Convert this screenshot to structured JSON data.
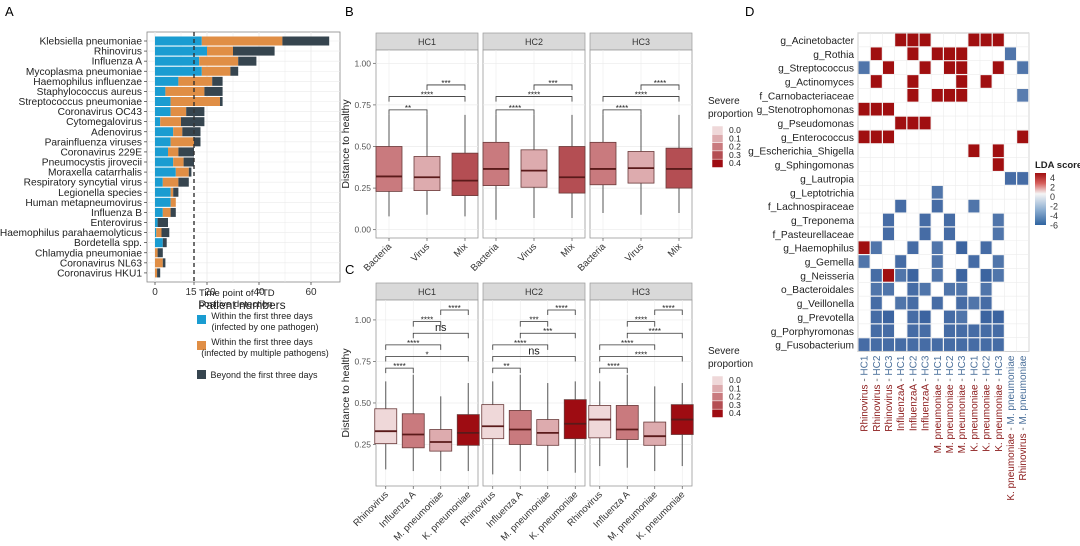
{
  "panel_labels": {
    "a": "A",
    "b": "B",
    "c": "C",
    "d": "D"
  },
  "colors": {
    "single": "#1a9cd1",
    "multiple": "#e08e45",
    "beyond": "#36454f",
    "severe": [
      "#efd8d9",
      "#ddabae",
      "#c97a7e",
      "#b44e53",
      "#9e0c12"
    ],
    "lda_pos": "#a00f10",
    "lda_neg": "#4a76a8",
    "strip": "#d9d9d9",
    "grid": "#ebebeb",
    "axis_label_d_red": "#8b1a1a",
    "axis_label_d_blue": "#4a6f9a"
  },
  "chart_data": [
    {
      "id": "A",
      "type": "bar",
      "stacked": true,
      "orientation": "horizontal",
      "xlabel": "Patient numbers",
      "xticks": [
        0,
        15,
        20,
        40,
        60
      ],
      "xlim": [
        -2,
        70
      ],
      "vline": 15,
      "grid": true,
      "categories": [
        "Klebsiella pneumoniae",
        "Rhinovirus",
        "Influenza A",
        "Mycoplasma pneumoniae",
        "Haemophilus influenzae",
        "Staphylococcus aureus",
        "Streptococcus pneumoniae",
        "Coronavirus OC43",
        "Cytomegalovirus",
        "Adenovirus",
        "Parainfluenza viruses",
        "Coronavirus 229E",
        "Pneumocystis jirovecii",
        "Moraxella catarrhalis",
        "Respiratory syncytial virus",
        "Legionella species",
        "Human metapneumovirus",
        "Influenza B",
        "Enterovirus",
        "Haemophilus parahaemolyticus",
        "Bordetella spp.",
        "Chlamydia pneumoniae",
        "Coronavirus NL63",
        "Coronavirus HKU1"
      ],
      "series": [
        {
          "name": "Within the first three days (infected by one pathogen)",
          "color_key": "single",
          "values": [
            18,
            20,
            17,
            18,
            9,
            4,
            6,
            6,
            2,
            7,
            6,
            5,
            7,
            8,
            3,
            6,
            6,
            3,
            1,
            0.5,
            3,
            0,
            0,
            0
          ]
        },
        {
          "name": "Within the first three days (infected by multiple pathogens)",
          "color_key": "multiple",
          "values": [
            31,
            10,
            15,
            11,
            13,
            15,
            19,
            6,
            8,
            3.5,
            9,
            4,
            4,
            5,
            6,
            1,
            2,
            3,
            0,
            2,
            0,
            1,
            3,
            0.8
          ]
        },
        {
          "name": "Beyond the first three days",
          "color_key": "beyond",
          "values": [
            18,
            16,
            7,
            3,
            4,
            7,
            1,
            7,
            9,
            7,
            2.5,
            6,
            4,
            1,
            4,
            2,
            0,
            2,
            4,
            3,
            1.5,
            2,
            1,
            1.2
          ]
        }
      ],
      "legend": {
        "title": "Time point of FTD\npositive detection",
        "placement": "bottom-right",
        "entries": [
          [
            "Within the first three days",
            "(infected by one pathogen)"
          ],
          [
            "Within the first three days",
            "(infected by multiple pathogens)"
          ],
          [
            "Beyond the first three days"
          ]
        ]
      }
    },
    {
      "id": "B",
      "type": "box",
      "ylabel": "Distance to healthy",
      "ylim": [
        -0.04,
        1.08
      ],
      "yticks": [
        "0.00",
        "0.25",
        "0.50",
        "0.75",
        "1.00"
      ],
      "facets": [
        "HC1",
        "HC2",
        "HC3"
      ],
      "categories": [
        "Bacteria",
        "Virus",
        "Mix"
      ],
      "boxes": [
        [
          {
            "lo": 0.08,
            "q1": 0.23,
            "med": 0.32,
            "q3": 0.5,
            "hi": 0.69,
            "sev": 0.2
          },
          {
            "lo": 0.09,
            "q1": 0.235,
            "med": 0.315,
            "q3": 0.44,
            "hi": 0.69,
            "sev": 0.1
          },
          {
            "lo": 0.08,
            "q1": 0.205,
            "med": 0.295,
            "q3": 0.46,
            "hi": 0.69,
            "sev": 0.3
          }
        ],
        [
          {
            "lo": 0.06,
            "q1": 0.265,
            "med": 0.365,
            "q3": 0.525,
            "hi": 0.69,
            "sev": 0.2
          },
          {
            "lo": 0.07,
            "q1": 0.255,
            "med": 0.355,
            "q3": 0.48,
            "hi": 0.69,
            "sev": 0.1
          },
          {
            "lo": 0.07,
            "q1": 0.22,
            "med": 0.315,
            "q3": 0.5,
            "hi": 0.69,
            "sev": 0.3
          }
        ],
        [
          {
            "lo": 0.1,
            "q1": 0.27,
            "med": 0.365,
            "q3": 0.525,
            "hi": 0.69,
            "sev": 0.2
          },
          {
            "lo": 0.09,
            "q1": 0.28,
            "med": 0.37,
            "q3": 0.47,
            "hi": 0.69,
            "sev": 0.1
          },
          {
            "lo": 0.1,
            "q1": 0.25,
            "med": 0.365,
            "q3": 0.49,
            "hi": 0.69,
            "sev": 0.3
          }
        ]
      ],
      "comparisons": [
        [
          {
            "a": 0,
            "b": 1,
            "y": 0.72,
            "label": "**"
          },
          {
            "a": 0,
            "b": 2,
            "y": 0.8,
            "label": "****"
          },
          {
            "a": 1,
            "b": 2,
            "y": 0.87,
            "label": "***"
          }
        ],
        [
          {
            "a": 0,
            "b": 1,
            "y": 0.72,
            "label": "****"
          },
          {
            "a": 0,
            "b": 2,
            "y": 0.8,
            "label": "****"
          },
          {
            "a": 1,
            "b": 2,
            "y": 0.87,
            "label": "***"
          }
        ],
        [
          {
            "a": 0,
            "b": 1,
            "y": 0.72,
            "label": "****"
          },
          {
            "a": 0,
            "b": 2,
            "y": 0.8,
            "label": "****"
          },
          {
            "a": 1,
            "b": 2,
            "y": 0.87,
            "label": "****"
          }
        ]
      ],
      "legend": {
        "title": "Severe\nproportion",
        "entries": [
          "0.0",
          "0.1",
          "0.2",
          "0.3",
          "0.4"
        ]
      }
    },
    {
      "id": "C",
      "type": "box",
      "ylabel": "Distance to healthy",
      "ylim": [
        0.0,
        1.1
      ],
      "yticks": [
        "0.25",
        "0.50",
        "0.75",
        "1.00"
      ],
      "facets": [
        "HC1",
        "HC2",
        "HC3"
      ],
      "categories": [
        "Rhinovirus",
        "Influenza A",
        "M. pneumoniae",
        "K. pneumoniae"
      ],
      "boxes": [
        [
          {
            "lo": 0.1,
            "q1": 0.255,
            "med": 0.33,
            "q3": 0.465,
            "hi": 0.63,
            "sev": 0.0
          },
          {
            "lo": 0.09,
            "q1": 0.23,
            "med": 0.31,
            "q3": 0.435,
            "hi": 0.67,
            "sev": 0.2
          },
          {
            "lo": 0.09,
            "q1": 0.21,
            "med": 0.265,
            "q3": 0.34,
            "hi": 0.54,
            "sev": 0.1
          },
          {
            "lo": 0.09,
            "q1": 0.245,
            "med": 0.32,
            "q3": 0.43,
            "hi": 0.62,
            "sev": 0.4
          }
        ],
        [
          {
            "lo": 0.07,
            "q1": 0.285,
            "med": 0.36,
            "q3": 0.49,
            "hi": 0.63,
            "sev": 0.0
          },
          {
            "lo": 0.09,
            "q1": 0.25,
            "med": 0.34,
            "q3": 0.455,
            "hi": 0.67,
            "sev": 0.2
          },
          {
            "lo": 0.09,
            "q1": 0.245,
            "med": 0.32,
            "q3": 0.4,
            "hi": 0.62,
            "sev": 0.1
          },
          {
            "lo": 0.08,
            "q1": 0.285,
            "med": 0.375,
            "q3": 0.52,
            "hi": 0.63,
            "sev": 0.4
          }
        ],
        [
          {
            "lo": 0.12,
            "q1": 0.29,
            "med": 0.4,
            "q3": 0.485,
            "hi": 0.63,
            "sev": 0.0
          },
          {
            "lo": 0.11,
            "q1": 0.28,
            "med": 0.34,
            "q3": 0.485,
            "hi": 0.67,
            "sev": 0.2
          },
          {
            "lo": 0.09,
            "q1": 0.245,
            "med": 0.3,
            "q3": 0.385,
            "hi": 0.6,
            "sev": 0.1
          },
          {
            "lo": 0.12,
            "q1": 0.31,
            "med": 0.4,
            "q3": 0.49,
            "hi": 0.62,
            "sev": 0.4
          }
        ]
      ],
      "comparisons": [
        [
          {
            "a": 0,
            "b": 1,
            "y": 0.71,
            "label": "****"
          },
          {
            "a": 0,
            "b": 3,
            "y": 0.78,
            "label": "*"
          },
          {
            "a": 0,
            "b": 2,
            "y": 0.85,
            "label": "****"
          },
          {
            "a": 1,
            "b": 3,
            "y": 0.92,
            "label": "ns"
          },
          {
            "a": 1,
            "b": 2,
            "y": 0.99,
            "label": "****"
          },
          {
            "a": 2,
            "b": 3,
            "y": 1.06,
            "label": "****"
          }
        ],
        [
          {
            "a": 0,
            "b": 1,
            "y": 0.71,
            "label": "**"
          },
          {
            "a": 0,
            "b": 3,
            "y": 0.78,
            "label": "ns"
          },
          {
            "a": 0,
            "b": 2,
            "y": 0.85,
            "label": "****"
          },
          {
            "a": 1,
            "b": 3,
            "y": 0.92,
            "label": "***"
          },
          {
            "a": 1,
            "b": 2,
            "y": 0.99,
            "label": "***"
          },
          {
            "a": 2,
            "b": 3,
            "y": 1.06,
            "label": "****"
          }
        ],
        [
          {
            "a": 0,
            "b": 1,
            "y": 0.71,
            "label": "****"
          },
          {
            "a": 0,
            "b": 3,
            "y": 0.78,
            "label": "****"
          },
          {
            "a": 0,
            "b": 2,
            "y": 0.85,
            "label": "****"
          },
          {
            "a": 1,
            "b": 3,
            "y": 0.92,
            "label": "****"
          },
          {
            "a": 1,
            "b": 2,
            "y": 0.99,
            "label": "****"
          },
          {
            "a": 2,
            "b": 3,
            "y": 1.06,
            "label": "****"
          }
        ]
      ],
      "legend": {
        "title": "Severe\nproportion",
        "entries": [
          "0.0",
          "0.1",
          "0.2",
          "0.3",
          "0.4"
        ]
      }
    },
    {
      "id": "D",
      "type": "heatmap",
      "rows": [
        "g_Acinetobacter",
        "g_Rothia",
        "g_Streptococcus",
        "g_Actinomyces",
        "f_Carnobacteriaceae",
        "g_Stenotrophomonas",
        "g_Pseudomonas",
        "g_Enterococcus",
        "g_Escherichia_Shigella",
        "g_Sphingomonas",
        "g_Lautropia",
        "g_Leptotrichia",
        "f_Lachnospiraceae",
        "g_Treponema",
        "f_Pasteurellaceae",
        "g_Haemophilus",
        "g_Gemella",
        "g_Neisseria",
        "o_Bacteroidales",
        "g_Veillonella",
        "g_Prevotella",
        "g_Porphyromonas",
        "g_Fusobacterium"
      ],
      "columns": [
        {
          "a": "Rhinovirus",
          "b": "HC1"
        },
        {
          "a": "Rhinovirus",
          "b": "HC2"
        },
        {
          "a": "Rhinovirus",
          "b": "HC3"
        },
        {
          "a": "InfluenzaA",
          "b": "HC1"
        },
        {
          "a": "InfluenzaA",
          "b": "HC2"
        },
        {
          "a": "InfluenzaA",
          "b": "HC3"
        },
        {
          "a": "M. pneumoniae",
          "b": "HC1"
        },
        {
          "a": "M. pneumoniae",
          "b": "HC2"
        },
        {
          "a": "M. pneumoniae",
          "b": "HC3"
        },
        {
          "a": "K. pneumoniae",
          "b": "HC1"
        },
        {
          "a": "K. pneumoniae",
          "b": "HC2"
        },
        {
          "a": "K. pneumoniae",
          "b": "HC3"
        },
        {
          "a": "K. pneumoniae",
          "b": "M. pneumoniae"
        },
        {
          "a": "Rhinovirus",
          "b": "M. pneumoniae"
        }
      ],
      "values": [
        [
          0,
          0,
          0,
          4,
          4,
          4,
          0,
          0,
          0,
          4,
          4,
          4,
          0,
          0
        ],
        [
          0,
          4,
          0,
          0,
          4,
          0,
          4,
          4,
          4,
          0,
          0,
          0,
          -4,
          0
        ],
        [
          -4,
          0,
          4,
          0,
          0,
          4,
          0,
          4,
          4,
          0,
          0,
          4,
          0,
          -4
        ],
        [
          0,
          4,
          0,
          0,
          4,
          0,
          0,
          0,
          4,
          0,
          4,
          0,
          0,
          0
        ],
        [
          0,
          0,
          0,
          0,
          4,
          0,
          4,
          4,
          4,
          0,
          0,
          0,
          0,
          -3
        ],
        [
          4,
          4,
          4,
          0,
          0,
          0,
          0,
          0,
          0,
          0,
          0,
          0,
          0,
          0
        ],
        [
          0,
          0,
          0,
          4,
          4,
          4,
          0,
          0,
          0,
          0,
          0,
          0,
          0,
          0
        ],
        [
          4,
          4,
          4,
          0,
          0,
          0,
          0,
          0,
          0,
          0,
          0,
          0,
          0,
          4
        ],
        [
          0,
          0,
          0,
          0,
          0,
          0,
          0,
          0,
          0,
          4,
          0,
          4,
          0,
          0
        ],
        [
          0,
          0,
          0,
          0,
          0,
          0,
          0,
          0,
          0,
          0,
          0,
          4,
          0,
          0
        ],
        [
          0,
          0,
          0,
          0,
          0,
          0,
          0,
          0,
          0,
          0,
          0,
          0,
          -5,
          -5
        ],
        [
          0,
          0,
          0,
          0,
          0,
          0,
          -4,
          0,
          0,
          0,
          0,
          0,
          0,
          0
        ],
        [
          0,
          0,
          0,
          -5,
          0,
          0,
          -5,
          0,
          0,
          -4,
          0,
          0,
          0,
          0
        ],
        [
          0,
          0,
          -5,
          0,
          0,
          -5,
          0,
          -5,
          0,
          0,
          0,
          -4,
          0,
          0
        ],
        [
          0,
          0,
          -5,
          0,
          0,
          -5,
          0,
          -5,
          0,
          0,
          0,
          -4,
          0,
          0
        ],
        [
          4,
          -4,
          0,
          0,
          -5,
          0,
          -4,
          0,
          -6,
          0,
          -5,
          0,
          0,
          0
        ],
        [
          -4,
          0,
          0,
          -5,
          0,
          0,
          -4,
          0,
          0,
          -5,
          0,
          -4,
          0,
          0
        ],
        [
          0,
          -5,
          4,
          -4,
          -6,
          0,
          -4,
          0,
          -6,
          0,
          -6,
          -4,
          0,
          0
        ],
        [
          0,
          -4,
          -4,
          0,
          -5,
          -4,
          0,
          -4,
          -4,
          0,
          -4,
          0,
          0,
          0
        ],
        [
          0,
          -5,
          0,
          -4,
          -5,
          0,
          -5,
          0,
          -5,
          -4,
          -5,
          0,
          0,
          0
        ],
        [
          0,
          -5,
          -6,
          0,
          -5,
          -6,
          0,
          -5,
          -4,
          0,
          -6,
          -6,
          0,
          0
        ],
        [
          0,
          -5,
          -5,
          0,
          -5,
          -5,
          0,
          -5,
          -5,
          -5,
          -5,
          -5,
          0,
          0
        ],
        [
          -5,
          -5,
          -5,
          -5,
          -5,
          -5,
          -5,
          -5,
          -5,
          -5,
          -5,
          -5,
          0,
          0
        ]
      ],
      "legend": {
        "title": "LDA score",
        "range": [
          -6,
          4
        ],
        "ticks": [
          "4",
          "2",
          "0",
          "-2",
          "-4",
          "-6"
        ]
      }
    }
  ]
}
